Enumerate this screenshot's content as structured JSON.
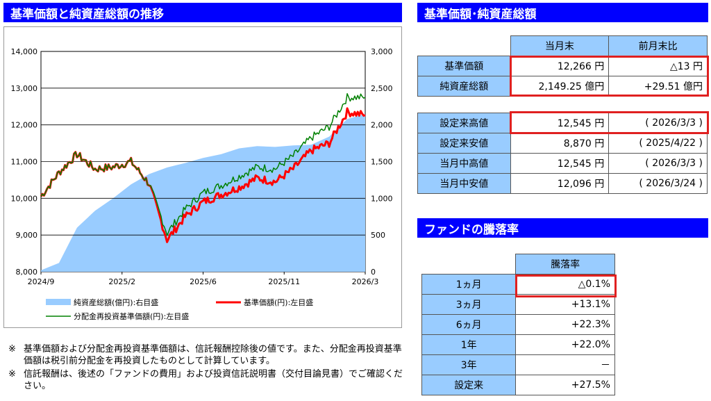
{
  "left": {
    "title": "基準価額と純資産総額の推移",
    "chart_data": {
      "type": "line",
      "x_ticks": [
        "2024/9",
        "2025/2",
        "2025/6",
        "2025/11",
        "2026/3"
      ],
      "y_left": {
        "ticks": [
          "14,000",
          "13,000",
          "12,000",
          "11,000",
          "10,000",
          "9,000",
          "8,000"
        ],
        "range": [
          8000,
          14000
        ]
      },
      "y_right": {
        "ticks": [
          "3,000",
          "2,500",
          "2,000",
          "1,500",
          "1,000",
          "500",
          "0"
        ],
        "range": [
          0,
          3000
        ]
      },
      "grid": true,
      "series": [
        {
          "name": "純資産総額(億円):右目盛",
          "type": "area",
          "color": "#99ccff",
          "x": [
            "2024/9",
            "2024/10",
            "2024/11",
            "2024/12",
            "2025/1",
            "2025/2",
            "2025/3",
            "2025/4",
            "2025/5",
            "2025/6",
            "2025/7",
            "2025/8",
            "2025/9",
            "2025/10",
            "2025/11",
            "2025/12",
            "2026/1",
            "2026/2",
            "2026/3"
          ],
          "values": [
            20,
            120,
            600,
            830,
            1000,
            1190,
            1330,
            1420,
            1480,
            1550,
            1600,
            1680,
            1710,
            1700,
            1720,
            1730,
            1840,
            2080,
            2149
          ]
        },
        {
          "name": "基準価額(円):左目盛",
          "type": "line",
          "color": "#ff0000",
          "x": [
            "2024/9",
            "2024/10",
            "2024/11",
            "2024/12",
            "2025/1",
            "2025/2",
            "2025/3",
            "2025/4",
            "2025/5",
            "2025/6",
            "2025/7",
            "2025/8",
            "2025/9",
            "2025/10",
            "2025/11",
            "2025/12",
            "2026/1",
            "2026/2",
            "2026/3"
          ],
          "values": [
            10050,
            10700,
            11200,
            10800,
            10850,
            11000,
            10400,
            8870,
            9500,
            9900,
            10100,
            10300,
            10550,
            10450,
            10800,
            11300,
            11500,
            12350,
            12266
          ]
        },
        {
          "name": "分配金再投資基準価額(円):左目盛",
          "type": "line",
          "color": "#008000",
          "x": [
            "2024/9",
            "2024/10",
            "2024/11",
            "2024/12",
            "2025/1",
            "2025/2",
            "2025/3",
            "2025/4",
            "2025/5",
            "2025/6",
            "2025/7",
            "2025/8",
            "2025/9",
            "2025/10",
            "2025/11",
            "2025/12",
            "2026/1",
            "2026/2",
            "2026/3"
          ],
          "values": [
            10050,
            10700,
            11200,
            10800,
            10850,
            11000,
            10400,
            9050,
            9700,
            10150,
            10350,
            10600,
            10850,
            10800,
            11150,
            11650,
            11950,
            12750,
            12750
          ]
        }
      ]
    }
  },
  "right": {
    "title": "基準価額･純資産総額",
    "headers": [
      "当月末",
      "前月末比"
    ],
    "rows": [
      {
        "label": "基準価額",
        "value": "12,266 円",
        "change": "△13 円"
      },
      {
        "label": "純資産総額",
        "value": "2,149.25 億円",
        "change": "+29.51 億円"
      }
    ],
    "stats": [
      {
        "label": "設定来高値",
        "value": "12,545 円",
        "date": "( 2026/3/3 )"
      },
      {
        "label": "設定来安値",
        "value": "8,870 円",
        "date": "( 2025/4/22 )"
      },
      {
        "label": "当月中高値",
        "value": "12,545 円",
        "date": "( 2026/3/3 )"
      },
      {
        "label": "当月中安値",
        "value": "12,096 円",
        "date": "( 2026/3/24 )"
      }
    ]
  },
  "perf": {
    "title": "ファンドの騰落率",
    "header": "騰落率",
    "rows": [
      {
        "label": "1ヵ月",
        "value": "△0.1%"
      },
      {
        "label": "3ヵ月",
        "value": "+13.1%"
      },
      {
        "label": "6ヵ月",
        "value": "+22.3%"
      },
      {
        "label": "1年",
        "value": "+22.0%"
      },
      {
        "label": "3年",
        "value": "－"
      },
      {
        "label": "設定来",
        "value": "+27.5%"
      }
    ]
  },
  "notes": [
    {
      "mark": "※",
      "text": "基準価額および分配金再投資基準価額は、信託報酬控除後の値です。また、分配金再投資基準価額は税引前分配金を再投資したものとして計算しています。"
    },
    {
      "mark": "※",
      "text": "信託報酬は、後述の「ファンドの費用」および投資信託説明書（交付目論見書）でご確認ください。"
    }
  ]
}
